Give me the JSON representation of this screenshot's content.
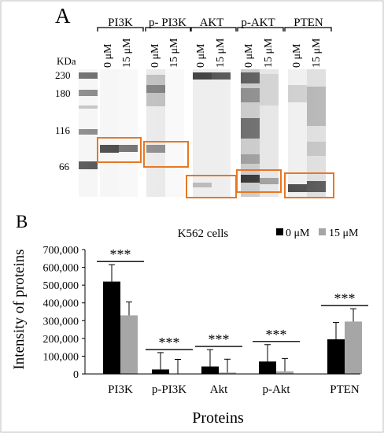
{
  "panel_a": {
    "label": "A",
    "protein_headers": [
      "PI3K",
      "p- PI3K",
      "AKT",
      "p-AKT",
      "PTEN"
    ],
    "dose_labels": [
      "0 μM",
      "15 μM"
    ],
    "marker_unit": "KDa",
    "markers": [
      "230",
      "180",
      "116",
      "66"
    ],
    "highlight_color": "#E87722"
  },
  "panel_b": {
    "label": "B"
  },
  "chart_data": {
    "type": "bar",
    "title": "K562 cells",
    "xlabel": "Proteins",
    "ylabel": "Intensity of proteins",
    "categories": [
      "PI3K",
      "p-PI3K",
      "Akt",
      "p-Akt",
      "PTEN"
    ],
    "ylim": [
      0,
      700000
    ],
    "yticks": [
      "0",
      "100,000",
      "200,000",
      "300,000",
      "400,000",
      "500,000",
      "600,000",
      "700,000"
    ],
    "yticks_values": [
      0,
      100000,
      200000,
      300000,
      400000,
      500000,
      600000,
      700000
    ],
    "legend_position": "top-right",
    "significance": [
      "***",
      "***",
      "***",
      "***",
      "***"
    ],
    "series": [
      {
        "name": "0 μM",
        "color": "#000000",
        "values": [
          520000,
          25000,
          42000,
          70000,
          195000
        ],
        "errors": [
          95000,
          95000,
          95000,
          95000,
          95000
        ]
      },
      {
        "name": "15 μM",
        "color": "#A6A6A6",
        "values": [
          330000,
          2000,
          8000,
          15000,
          295000
        ],
        "errors": [
          75000,
          80000,
          75000,
          72000,
          72000
        ]
      }
    ]
  }
}
